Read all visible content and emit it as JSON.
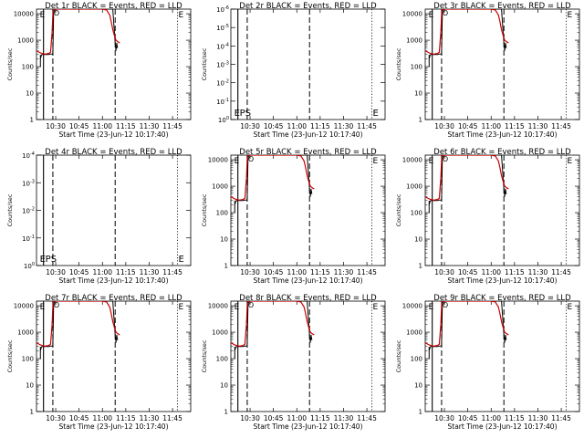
{
  "figure": {
    "panels": [
      {
        "title": "Det 1r BLACK = Events, RED = LLD",
        "layout": "counts"
      },
      {
        "title": "Det 2r BLACK = Events, RED = LLD",
        "layout": "empty_small"
      },
      {
        "title": "Det 3r BLACK = Events, RED = LLD",
        "layout": "counts"
      },
      {
        "title": "Det 4r BLACK = Events, RED = LLD",
        "layout": "empty_tiny"
      },
      {
        "title": "Det 5r BLACK = Events, RED = LLD",
        "layout": "counts"
      },
      {
        "title": "Det 6r BLACK = Events, RED = LLD",
        "layout": "counts"
      },
      {
        "title": "Det 7r BLACK = Events, RED = LLD",
        "layout": "counts"
      },
      {
        "title": "Det 8r BLACK = Events, RED = LLD",
        "layout": "counts"
      },
      {
        "title": "Det 9r BLACK = Events, RED = LLD",
        "layout": "counts"
      }
    ],
    "ylabel": "Counts/sec",
    "xlabel": "Start Time (23-Jun-12 10:17:40)",
    "xticks": [
      "10:30",
      "10:45",
      "11:00",
      "11:15",
      "11:30",
      "11:45"
    ],
    "yticks_counts": [
      "1",
      "10",
      "100",
      "1000",
      "10000"
    ],
    "yticks_empty_small": [
      "10^0",
      "10^-1",
      "10^-2",
      "10^-3",
      "10^-4",
      "10^-5",
      "10^-6"
    ],
    "yticks_empty_tiny": [
      "10^0",
      "10^-1",
      "10^-2",
      "10^-3",
      "10^-4"
    ],
    "markers": {
      "E": "E",
      "PS": "PS",
      "O": "O"
    }
  },
  "chart_data": {
    "type": "line",
    "x_unit": "minutes after 10:17:40 UT, 23-Jun-12",
    "y_scale": "log",
    "xlim": [
      0,
      99
    ],
    "ylim": [
      1,
      15000
    ],
    "vertical_lines": {
      "solid": [
        4.5
      ],
      "dashed": [
        10.5,
        50.5
      ],
      "dotted": [
        90.5
      ]
    },
    "series": [
      {
        "name": "Events",
        "color": "#000000",
        "x": [
          2.5,
          3.0,
          3.5,
          4.5,
          5.0,
          6.0,
          7.0,
          8.0,
          9.0,
          10.5,
          11.0,
          12.0,
          13.0,
          14.0,
          15.0,
          16.0,
          17.0,
          18.0,
          19.0,
          20.0,
          22.0,
          24.0,
          26.0,
          30.0,
          34.0,
          38.0,
          42.0,
          45.0,
          47.0,
          49.0,
          50.5,
          51.0,
          51.5,
          52.0
        ],
        "y": [
          200,
          250,
          290,
          290,
          290,
          290,
          290,
          290,
          300,
          300,
          12000,
          15000,
          15000,
          15000,
          15000,
          15000,
          15000,
          15000,
          15000,
          15000,
          15000,
          15000,
          15000,
          15000,
          15000,
          15000,
          15000,
          15000,
          15000,
          15000,
          800,
          400,
          800,
          500
        ]
      },
      {
        "name": "LLD",
        "color": "#cc0000",
        "x": [
          0,
          2.5,
          4.5,
          6.0,
          8.0,
          9.0,
          10.0,
          10.5,
          11.0,
          12.0,
          14.0,
          16.0,
          18.0,
          20.0,
          22.0,
          24.0,
          26.0,
          30.0,
          34.0,
          38.0,
          42.0,
          45.0,
          47.0,
          48.0,
          49.0,
          50.0,
          51.0,
          51.5,
          52.5,
          53.5
        ],
        "y": [
          400,
          330,
          300,
          300,
          320,
          350,
          2000,
          9000,
          15000,
          15000,
          15000,
          15000,
          15000,
          15000,
          15000,
          15000,
          15000,
          15000,
          15000,
          15000,
          15000,
          14000,
          9000,
          5000,
          2500,
          1500,
          1000,
          950,
          850,
          800
        ]
      }
    ]
  }
}
